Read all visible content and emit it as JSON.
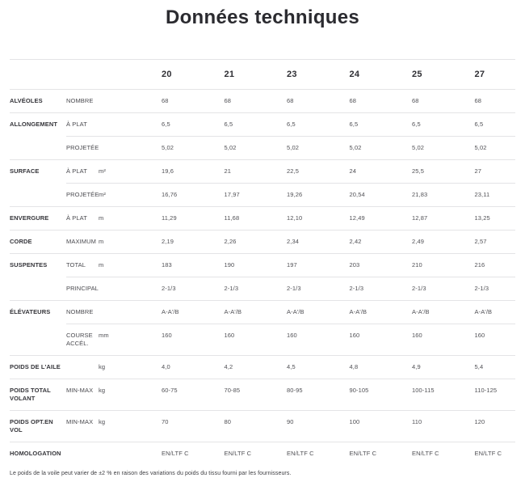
{
  "page": {
    "title": "Données techniques",
    "footnote": "Le poids de la voile peut varier de ±2 % en raison des variations du poids du tissu fourni par les fournisseurs."
  },
  "colors": {
    "separator_line": "#e4e4e6",
    "title_text": "#2b2b30",
    "category_text": "#35353a",
    "value_text": "#515156"
  },
  "table": {
    "column_headers": [
      "20",
      "21",
      "23",
      "24",
      "25",
      "27"
    ],
    "rows": [
      {
        "category": "ALVÉOLES",
        "sub": "NOMBRE",
        "unit": "",
        "separator": "full",
        "values": [
          "68",
          "68",
          "68",
          "68",
          "68",
          "68"
        ]
      },
      {
        "category": "ALLONGEMENT",
        "sub": "À PLAT",
        "unit": "",
        "separator": "full",
        "values": [
          "6,5",
          "6,5",
          "6,5",
          "6,5",
          "6,5",
          "6,5"
        ]
      },
      {
        "category": "",
        "sub": "PROJETÉE",
        "unit": "",
        "separator": "indent",
        "values": [
          "5,02",
          "5,02",
          "5,02",
          "5,02",
          "5,02",
          "5,02"
        ]
      },
      {
        "category": "SURFACE",
        "sub": "À PLAT",
        "unit": "m²",
        "separator": "full",
        "values": [
          "19,6",
          "21",
          "22,5",
          "24",
          "25,5",
          "27"
        ]
      },
      {
        "category": "",
        "sub": "PROJETÉE",
        "unit": "m²",
        "separator": "indent",
        "values": [
          "16,76",
          "17,97",
          "19,26",
          "20,54",
          "21,83",
          "23,11"
        ]
      },
      {
        "category": "ENVERGURE",
        "sub": "À PLAT",
        "unit": "m",
        "separator": "full",
        "values": [
          "11,29",
          "11,68",
          "12,10",
          "12,49",
          "12,87",
          "13,25"
        ]
      },
      {
        "category": "CORDE",
        "sub": "MAXIMUM",
        "unit": "m",
        "separator": "full",
        "values": [
          "2,19",
          "2,26",
          "2,34",
          "2,42",
          "2,49",
          "2,57"
        ]
      },
      {
        "category": "SUSPENTES",
        "sub": "TOTAL",
        "unit": "m",
        "separator": "full",
        "values": [
          "183",
          "190",
          "197",
          "203",
          "210",
          "216"
        ]
      },
      {
        "category": "",
        "sub": "PRINCIPAL",
        "unit": "",
        "separator": "indent",
        "values": [
          "2-1/3",
          "2-1/3",
          "2-1/3",
          "2-1/3",
          "2-1/3",
          "2-1/3"
        ]
      },
      {
        "category": "ÉLÉVATEURS",
        "sub": "NOMBRE",
        "unit": "",
        "separator": "full",
        "values": [
          "A-A'/B",
          "A-A'/B",
          "A-A'/B",
          "A-A'/B",
          "A-A'/B",
          "A-A'/B"
        ]
      },
      {
        "category": "",
        "sub": "COURSE ACCÉL.",
        "unit": "mm",
        "separator": "indent",
        "values": [
          "160",
          "160",
          "160",
          "160",
          "160",
          "160"
        ]
      },
      {
        "category": "POIDS DE L'AILE",
        "sub": "",
        "unit": "kg",
        "separator": "full",
        "values": [
          "4,0",
          "4,2",
          "4,5",
          "4,8",
          "4,9",
          "5,4"
        ]
      },
      {
        "category": "POIDS TOTAL VOLANT",
        "sub": "MIN-MAX",
        "unit": "kg",
        "separator": "full",
        "values": [
          "60-75",
          "70-85",
          "80-95",
          "90-105",
          "100-115",
          "110-125"
        ]
      },
      {
        "category": "POIDS OPT.EN VOL",
        "sub": "MIN-MAX",
        "unit": "kg",
        "separator": "full",
        "values": [
          "70",
          "80",
          "90",
          "100",
          "110",
          "120"
        ]
      },
      {
        "category": "HOMOLOGATION",
        "sub": "",
        "unit": "",
        "separator": "full",
        "values": [
          "EN/LTF C",
          "EN/LTF C",
          "EN/LTF C",
          "EN/LTF C",
          "EN/LTF C",
          "EN/LTF C"
        ]
      }
    ]
  }
}
